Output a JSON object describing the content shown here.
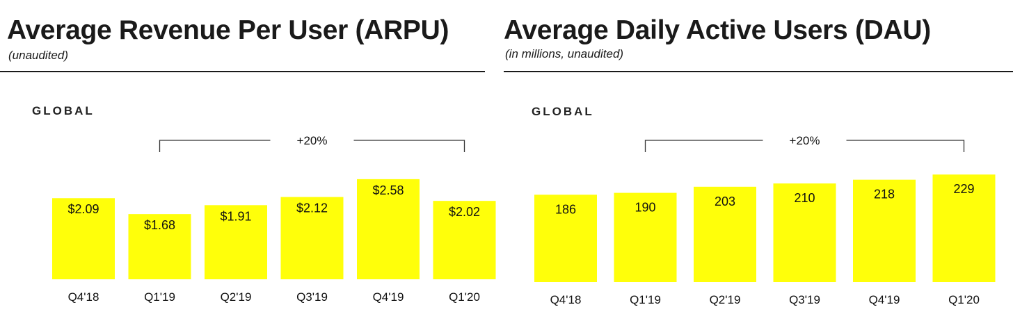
{
  "chart_data": [
    {
      "type": "bar",
      "title": "Average Revenue Per User (ARPU)",
      "subtitle": "(unaudited)",
      "region": "GLOBAL",
      "categories": [
        "Q4'18",
        "Q1'19",
        "Q2'19",
        "Q3'19",
        "Q4'19",
        "Q1'20"
      ],
      "values": [
        2.09,
        1.68,
        1.91,
        2.12,
        2.58,
        2.02
      ],
      "value_labels": [
        "$2.09",
        "$1.68",
        "$1.91",
        "$2.12",
        "$2.58",
        "$2.02"
      ],
      "growth_annotation": {
        "label": "+20%",
        "from": "Q1'19",
        "to": "Q1'20"
      },
      "ylim": [
        0,
        2.9
      ],
      "bar_color": "#ffff0a",
      "grid": false
    },
    {
      "type": "bar",
      "title": "Average Daily Active Users (DAU)",
      "subtitle": "(in millions, unaudited)",
      "region": "GLOBAL",
      "categories": [
        "Q4'18",
        "Q1'19",
        "Q2'19",
        "Q3'19",
        "Q4'19",
        "Q1'20"
      ],
      "values": [
        186,
        190,
        203,
        210,
        218,
        229
      ],
      "value_labels": [
        "186",
        "190",
        "203",
        "210",
        "218",
        "229"
      ],
      "growth_annotation": {
        "label": "+20%",
        "from": "Q1'19",
        "to": "Q1'20"
      },
      "ylim": [
        0,
        290
      ],
      "bar_color": "#ffff0a",
      "grid": false
    }
  ]
}
